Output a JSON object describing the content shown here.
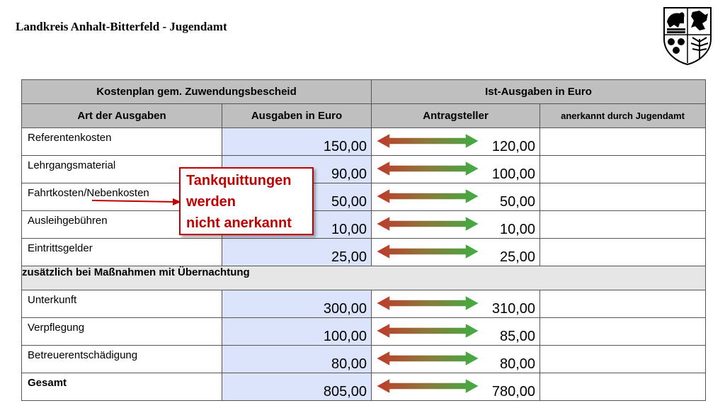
{
  "header": {
    "title": "Landkreis Anhalt-Bitterfeld - Jugendamt"
  },
  "table": {
    "group_left": "Kostenplan gem. Zuwendungsbescheid",
    "group_right": "Ist-Ausgaben in Euro",
    "columns": [
      "Art der Ausgaben",
      "Ausgaben in Euro",
      "Antragsteller",
      "anerkannt durch Jugendamt"
    ],
    "rows": [
      {
        "label": "Referentenkosten",
        "planned": "150,00",
        "actual": "120,00",
        "approved": ""
      },
      {
        "label": "Lehrgangsmaterial",
        "planned": "90,00",
        "actual": "100,00",
        "approved": ""
      },
      {
        "label": "Fahrtkosten/Nebenkosten",
        "planned": "50,00",
        "actual": "50,00",
        "approved": ""
      },
      {
        "label": "Ausleihgebühren",
        "planned": "10,00",
        "actual": "10,00",
        "approved": ""
      },
      {
        "label": "Eintrittsgelder",
        "planned": "25,00",
        "actual": "25,00",
        "approved": ""
      }
    ],
    "section_label": "zusätzlich bei Maßnahmen mit Übernachtung",
    "overnight_rows": [
      {
        "label": "Unterkunft",
        "planned": "300,00",
        "actual": "310,00",
        "approved": ""
      },
      {
        "label": "Verpflegung",
        "planned": "100,00",
        "actual": "85,00",
        "approved": ""
      },
      {
        "label": "Betreuerentschädigung",
        "planned": "80,00",
        "actual": "80,00",
        "approved": ""
      }
    ],
    "total": {
      "label": "Gesamt",
      "planned": "805,00",
      "actual": "780,00",
      "approved": ""
    }
  },
  "callout": {
    "lines": [
      "Tankquittungen",
      "werden",
      "nicht anerkannt"
    ]
  },
  "colors": {
    "header_bg": "#bfbfbf",
    "planned_bg": "#dbe4fb",
    "section_bg": "#e6e6e6",
    "callout_red": "#c00000",
    "arrow_red": "#c0392b",
    "arrow_green": "#3cb043"
  },
  "icons": {
    "crest": "coat-of-arms-icon",
    "arrow": "double-arrow-icon"
  }
}
